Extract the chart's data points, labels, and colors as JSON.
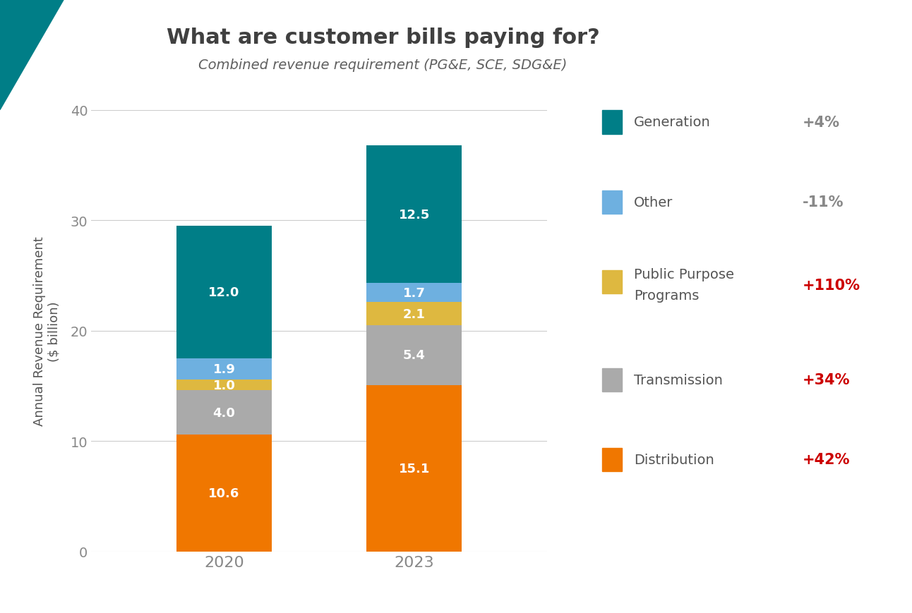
{
  "title": "What are customer bills paying for?",
  "subtitle": "Combined revenue requirement (PG&E, SCE, SDG&E)",
  "ylabel": "Annual Revenue Requirement\n($ billion)",
  "years": [
    "2020",
    "2023"
  ],
  "segments": {
    "Distribution": {
      "values": [
        10.6,
        15.1
      ],
      "color": "#F07700"
    },
    "Transmission": {
      "values": [
        4.0,
        5.4
      ],
      "color": "#AAAAAA"
    },
    "Public Purpose Programs": {
      "values": [
        1.0,
        2.1
      ],
      "color": "#DEB840"
    },
    "Other": {
      "values": [
        1.9,
        1.7
      ],
      "color": "#6EB0E0"
    },
    "Generation": {
      "values": [
        12.0,
        12.5
      ],
      "color": "#007E87"
    }
  },
  "segment_order": [
    "Distribution",
    "Transmission",
    "Public Purpose Programs",
    "Other",
    "Generation"
  ],
  "legend_order": [
    "Generation",
    "Other",
    "Public Purpose Programs",
    "Transmission",
    "Distribution"
  ],
  "pct_changes": {
    "Generation": "+4%",
    "Other": "-11%",
    "Public Purpose Programs": "+110%",
    "Transmission": "+34%",
    "Distribution": "+42%"
  },
  "pct_colors": {
    "Generation": "#888888",
    "Other": "#888888",
    "Public Purpose Programs": "#CC0000",
    "Transmission": "#CC0000",
    "Distribution": "#CC0000"
  },
  "ylim": [
    0,
    40
  ],
  "yticks": [
    0,
    10,
    20,
    30,
    40
  ],
  "background_color": "#FFFFFF",
  "bar_width": 0.5,
  "title_color": "#404040",
  "subtitle_color": "#606060",
  "label_color": "#555555",
  "tick_color": "#888888",
  "grid_color": "#CCCCCC",
  "triangle_color": "#007E87"
}
